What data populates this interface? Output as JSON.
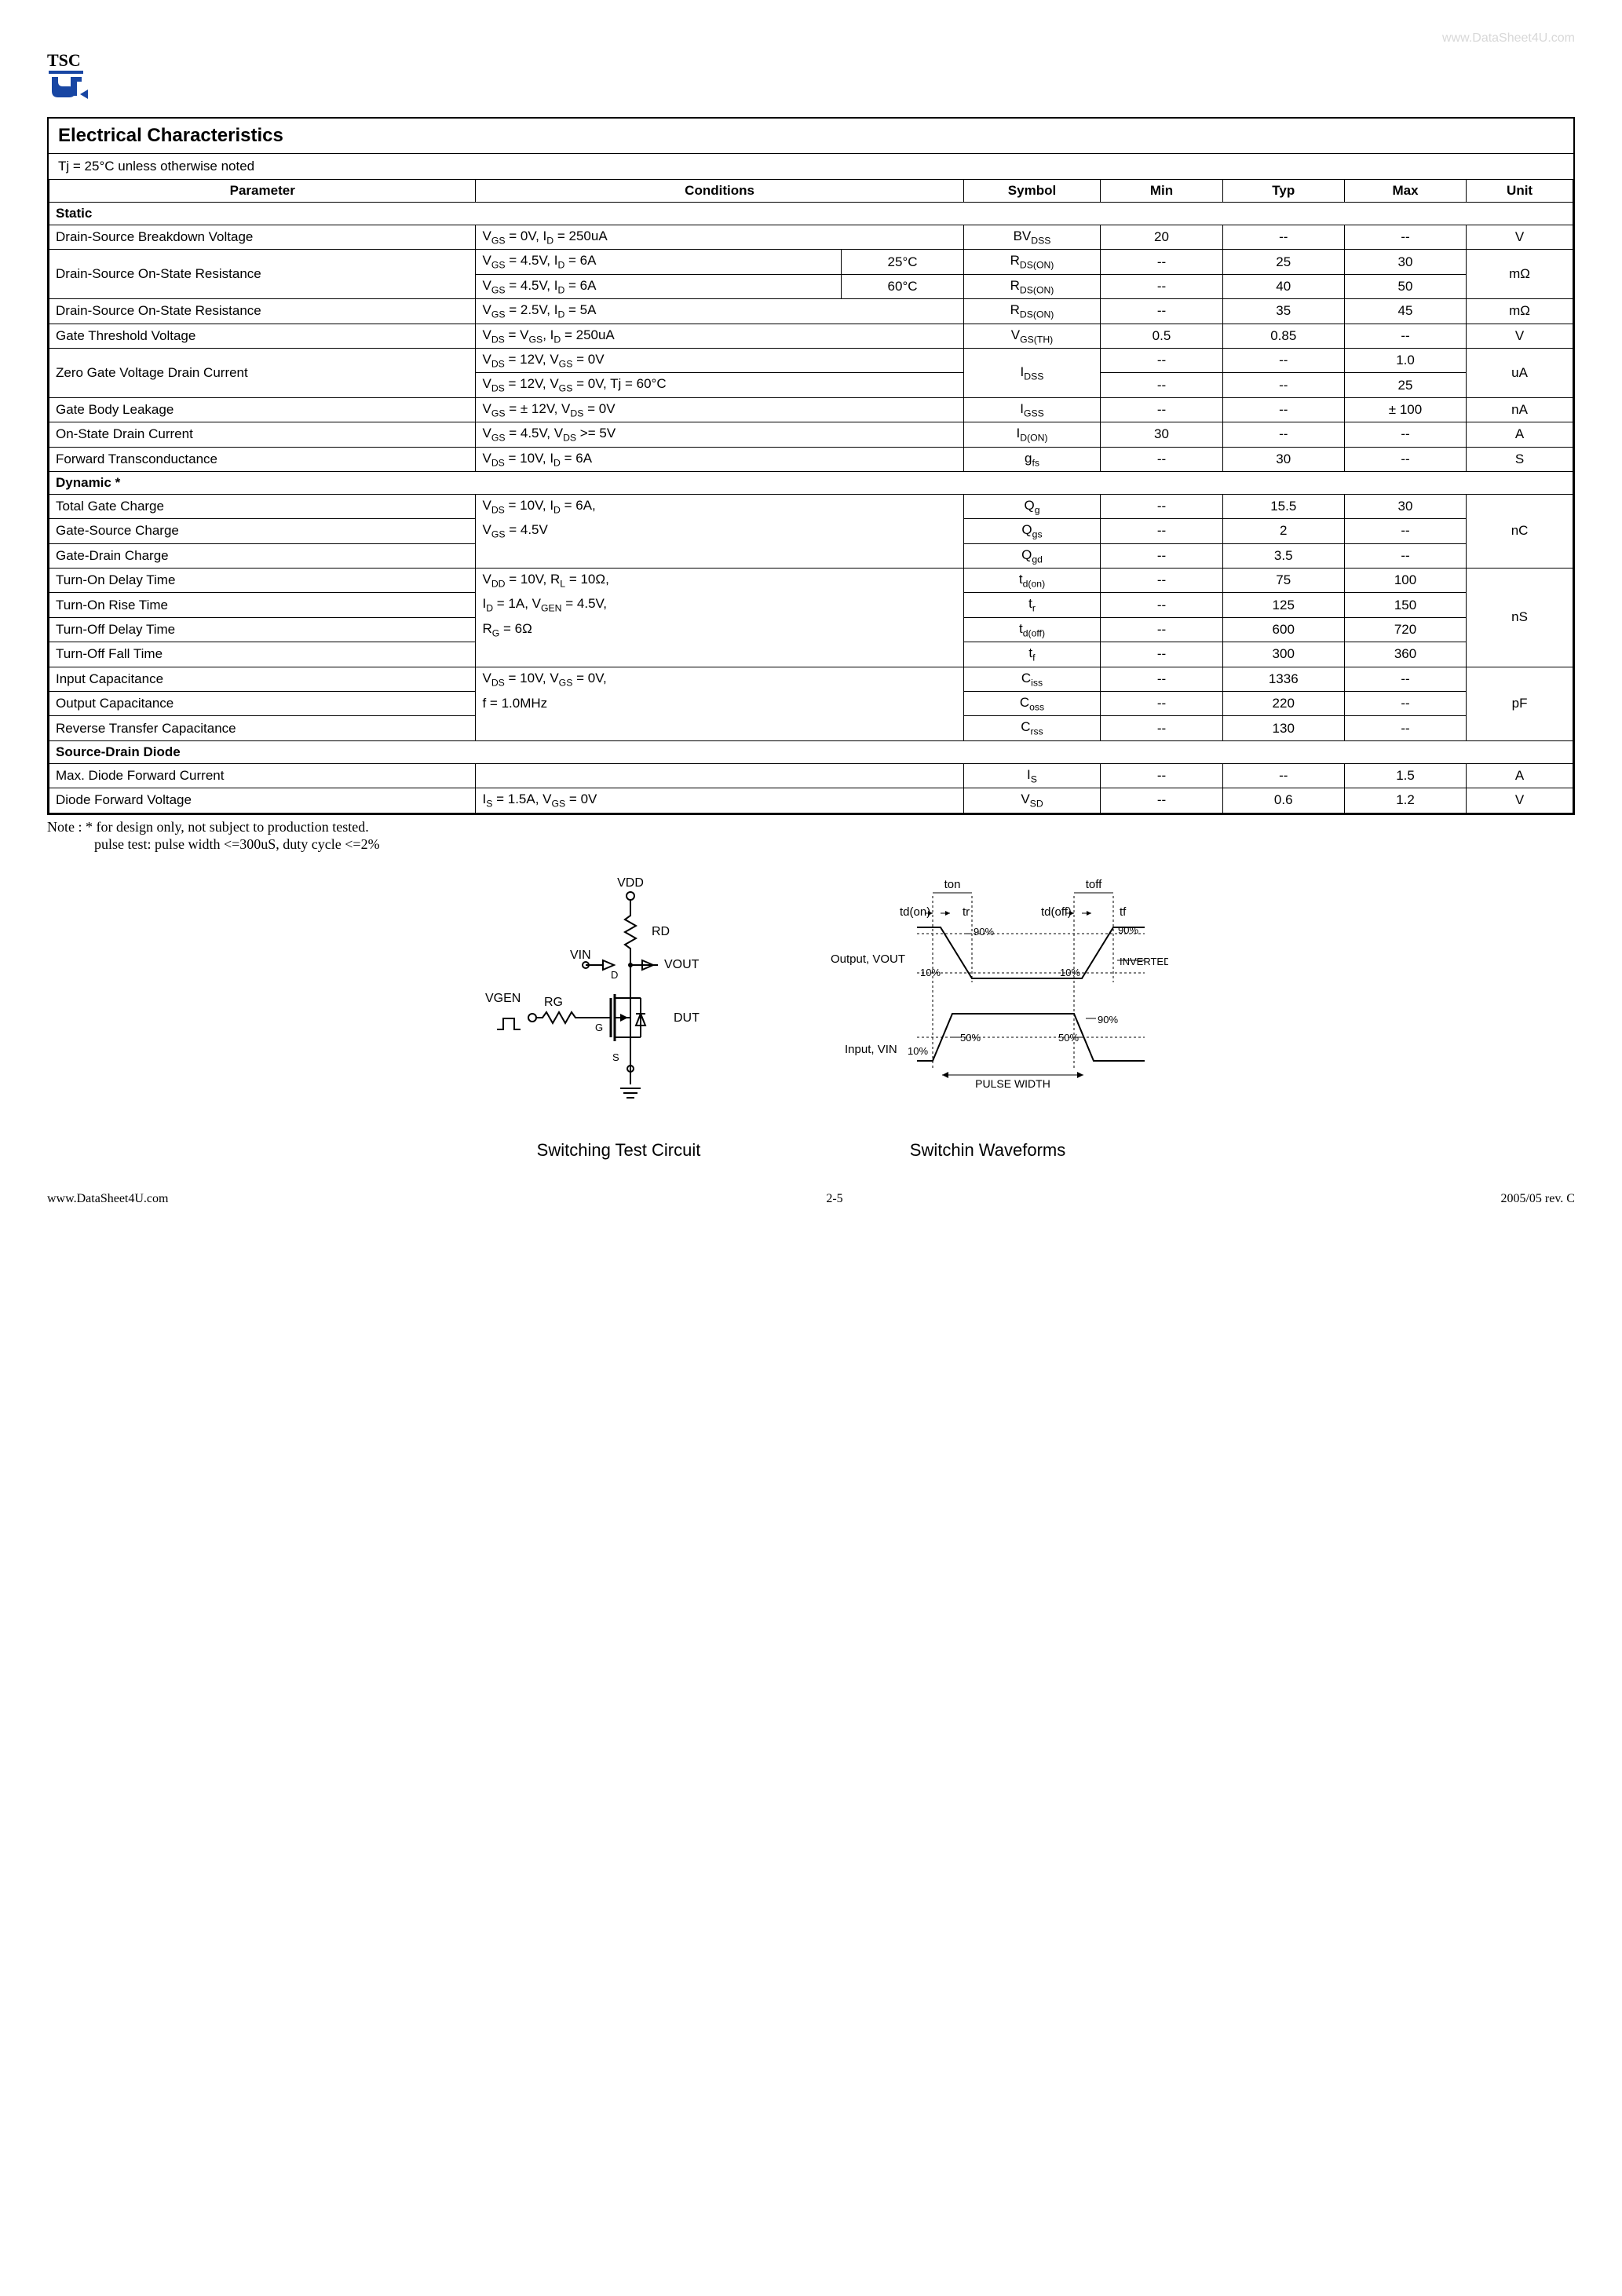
{
  "watermark_top": "www.DataSheet4U.com",
  "logo": {
    "line1": "TSC"
  },
  "box": {
    "title": "Electrical Characteristics",
    "temp_note": "Tj = 25°C unless otherwise noted",
    "headers": {
      "parameter": "Parameter",
      "conditions": "Conditions",
      "symbol": "Symbol",
      "min": "Min",
      "typ": "Typ",
      "max": "Max",
      "unit": "Unit"
    },
    "sections": {
      "static": "Static",
      "dynamic": "Dynamic *",
      "diode": "Source-Drain Diode"
    },
    "rows": {
      "bvdss": {
        "param": "Drain-Source Breakdown Voltage",
        "cond_html": "V<sub>GS</sub> = 0V, I<sub>D</sub> = 250uA",
        "sym_html": "BV<sub>DSS</sub>",
        "min": "20",
        "typ": "--",
        "max": "--",
        "unit": "V"
      },
      "rdson25": {
        "param": "Drain-Source On-State Resistance",
        "cond_html": "V<sub>GS</sub> = 4.5V, I<sub>D</sub> = 6A",
        "cond2": "25°C",
        "sym_html": "R<sub>DS(ON)</sub>",
        "min": "--",
        "typ": "25",
        "max": "30",
        "unit": "mΩ"
      },
      "rdson60": {
        "cond_html": "V<sub>GS</sub> = 4.5V, I<sub>D</sub> = 6A",
        "cond2": "60°C",
        "sym_html": "R<sub>DS(ON)</sub>",
        "min": "--",
        "typ": "40",
        "max": "50"
      },
      "rdson25b": {
        "param": "Drain-Source On-State Resistance",
        "cond_html": "V<sub>GS</sub> = 2.5V, I<sub>D</sub> = 5A",
        "sym_html": "R<sub>DS(ON)</sub>",
        "min": "--",
        "typ": "35",
        "max": "45",
        "unit": "mΩ"
      },
      "vgsth": {
        "param": "Gate Threshold Voltage",
        "cond_html": "V<sub>DS</sub> = V<sub>GS</sub>, I<sub>D</sub> = 250uA",
        "sym_html": "V<sub>GS(TH)</sub>",
        "min": "0.5",
        "typ": "0.85",
        "max": "--",
        "unit": "V"
      },
      "idss1": {
        "param": "Zero Gate Voltage Drain Current",
        "cond_html": "V<sub>DS</sub> = 12V, V<sub>GS</sub> = 0V",
        "sym_html": "I<sub>DSS</sub>",
        "min": "--",
        "typ": "--",
        "max": "1.0",
        "unit": "uA"
      },
      "idss2": {
        "cond_html": "V<sub>DS</sub> = 12V, V<sub>GS</sub> = 0V, Tj = 60°C",
        "min": "--",
        "typ": "--",
        "max": "25"
      },
      "igss": {
        "param": "Gate Body Leakage",
        "cond_html": "V<sub>GS</sub> = ± 12V, V<sub>DS</sub> = 0V",
        "sym_html": "I<sub>GSS</sub>",
        "min": "--",
        "typ": "--",
        "max": "± 100",
        "unit": "nA"
      },
      "idon": {
        "param": "On-State Drain Current",
        "cond_html": "V<sub>GS</sub> = 4.5V, V<sub>DS</sub> >= 5V",
        "sym_html": "I<sub>D(ON)</sub>",
        "min": "30",
        "typ": "--",
        "max": "--",
        "unit": "A"
      },
      "gfs": {
        "param": "Forward Transconductance",
        "cond_html": "V<sub>DS</sub> = 10V, I<sub>D</sub> = 6A",
        "sym_html": "g<sub>fs</sub>",
        "min": "--",
        "typ": "30",
        "max": "--",
        "unit": "S"
      },
      "qg": {
        "param": "Total Gate Charge",
        "cond_html": "V<sub>DS</sub> = 10V, I<sub>D</sub> = 6A,",
        "sym_html": "Q<sub>g</sub>",
        "min": "--",
        "typ": "15.5",
        "max": "30",
        "unit": "nC"
      },
      "qgs": {
        "param": "Gate-Source Charge",
        "cond_html": "V<sub>GS</sub> = 4.5V",
        "sym_html": "Q<sub>gs</sub>",
        "min": "--",
        "typ": "2",
        "max": "--"
      },
      "qgd": {
        "param": "Gate-Drain Charge",
        "sym_html": "Q<sub>gd</sub>",
        "min": "--",
        "typ": "3.5",
        "max": "--"
      },
      "tdon": {
        "param": "Turn-On Delay Time",
        "cond_html": "V<sub>DD</sub> = 10V, R<sub>L</sub> = 10Ω,",
        "sym_html": "t<sub>d(on)</sub>",
        "min": "--",
        "typ": "75",
        "max": "100",
        "unit": "nS"
      },
      "tr": {
        "param": "Turn-On Rise Time",
        "cond_html": "I<sub>D</sub> = 1A, V<sub>GEN</sub> = 4.5V,",
        "sym_html": "t<sub>r</sub>",
        "min": "--",
        "typ": "125",
        "max": "150"
      },
      "tdoff": {
        "param": "Turn-Off Delay Time",
        "cond_html": "R<sub>G</sub> = 6Ω",
        "sym_html": "t<sub>d(off)</sub>",
        "min": "--",
        "typ": "600",
        "max": "720"
      },
      "tf": {
        "param": "Turn-Off Fall Time",
        "sym_html": "t<sub>f</sub>",
        "min": "--",
        "typ": "300",
        "max": "360"
      },
      "ciss": {
        "param": "Input Capacitance",
        "cond_html": "V<sub>DS</sub> = 10V, V<sub>GS</sub> = 0V,",
        "sym_html": "C<sub>iss</sub>",
        "min": "--",
        "typ": "1336",
        "max": "--",
        "unit": "pF"
      },
      "coss": {
        "param": "Output Capacitance",
        "cond_html": "f = 1.0MHz",
        "sym_html": "C<sub>oss</sub>",
        "min": "--",
        "typ": "220",
        "max": "--"
      },
      "crss": {
        "param": "Reverse Transfer Capacitance",
        "sym_html": "C<sub>rss</sub>",
        "min": "--",
        "typ": "130",
        "max": "--"
      },
      "is": {
        "param": "Max. Diode Forward Current",
        "sym_html": "I<sub>S</sub>",
        "min": "--",
        "typ": "--",
        "max": "1.5",
        "unit": "A"
      },
      "vsd": {
        "param": "Diode Forward Voltage",
        "cond_html": "I<sub>S</sub> = 1.5A, V<sub>GS</sub> = 0V",
        "sym_html": "V<sub>SD</sub>",
        "min": "--",
        "typ": "0.6",
        "max": "1.2",
        "unit": "V"
      }
    }
  },
  "notes": {
    "line1": "Note : * for design only, not subject to production tested.",
    "line2": "pulse test: pulse width <=300uS, duty cycle <=2%"
  },
  "diagram_left": {
    "caption": "Switching Test Circuit",
    "labels": {
      "vdd": "VDD",
      "rd": "RD",
      "vin": "VIN",
      "vout": "VOUT",
      "d": "D",
      "g": "G",
      "s": "S",
      "dut": "DUT",
      "vgen": "VGEN",
      "rg": "RG"
    }
  },
  "diagram_right": {
    "caption": "Switchin Waveforms",
    "labels": {
      "ton": "ton",
      "toff": "toff",
      "tdon": "td(on)",
      "tr": "tr",
      "tdoff": "td(off)",
      "tf": "tf",
      "out": "Output, VOUT",
      "in": "Input, VIN",
      "p90a": "90%",
      "p90b": "90%",
      "p90c": "90%",
      "p10a": "10%",
      "p10b": "10%",
      "p10c": "10%",
      "p50a": "50%",
      "p50b": "50%",
      "inv": "INVERTED",
      "pw": "PULSE WIDTH"
    }
  },
  "footer": {
    "left": "www.DataSheet4U.com",
    "mid": "2-5",
    "right": "2005/05 rev. C"
  }
}
